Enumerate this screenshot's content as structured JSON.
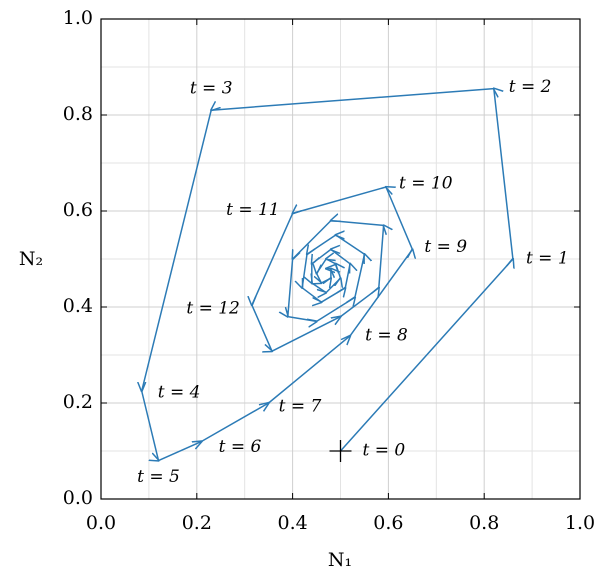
{
  "chart_data": {
    "type": "line",
    "color": "#2c7bb6",
    "x_label": "N₁",
    "y_label": "N₂",
    "x": [
      0.5,
      0.86,
      0.82,
      0.23,
      0.085,
      0.12,
      0.21,
      0.35,
      0.52,
      0.65,
      0.595,
      0.4,
      0.315,
      0.357,
      0.5,
      0.58,
      0.59,
      0.48,
      0.4,
      0.39,
      0.45,
      0.53,
      0.55,
      0.49,
      0.43,
      0.42,
      0.46,
      0.51,
      0.52,
      0.48,
      0.44,
      0.44,
      0.47,
      0.5,
      0.49,
      0.47,
      0.45,
      0.46,
      0.48,
      0.48,
      0.47
    ],
    "values": [
      0.1,
      0.5,
      0.855,
      0.81,
      0.225,
      0.08,
      0.12,
      0.2,
      0.34,
      0.52,
      0.65,
      0.595,
      0.404,
      0.308,
      0.38,
      0.44,
      0.57,
      0.58,
      0.5,
      0.38,
      0.37,
      0.42,
      0.51,
      0.55,
      0.51,
      0.44,
      0.41,
      0.44,
      0.49,
      0.52,
      0.49,
      0.45,
      0.43,
      0.46,
      0.49,
      0.5,
      0.47,
      0.45,
      0.46,
      0.48,
      0.48
    ],
    "point_labels": [
      "t = 0",
      "t = 1",
      "t = 2",
      "t = 3",
      "t = 4",
      "t = 5",
      "t = 6",
      "t = 7",
      "t = 8",
      "t = 9",
      "t = 10",
      "t = 11",
      "t = 12",
      null,
      null,
      null,
      null,
      null,
      null,
      null,
      null,
      null,
      null,
      null,
      null,
      null,
      null,
      null,
      null,
      null,
      null,
      null,
      null,
      null,
      null,
      null,
      null,
      null,
      null,
      null,
      null
    ],
    "xlim": [
      0,
      1
    ],
    "ylim": [
      0,
      1
    ],
    "xticks": [
      {
        "value": 0,
        "label": "0.0"
      },
      0.2,
      0.4,
      0.6,
      0.8,
      {
        "value": 1,
        "label": "1.0"
      }
    ],
    "yticks": [
      {
        "value": 0,
        "label": "0.0"
      },
      0.2,
      0.4,
      0.6,
      0.8,
      {
        "value": 1,
        "label": "1.0"
      }
    ],
    "xminorticks": [
      0.1,
      0.3,
      0.5,
      0.7,
      0.9
    ],
    "yminorticks": [
      0.1,
      0.3,
      0.5,
      0.7,
      0.9
    ],
    "grid": true
  }
}
